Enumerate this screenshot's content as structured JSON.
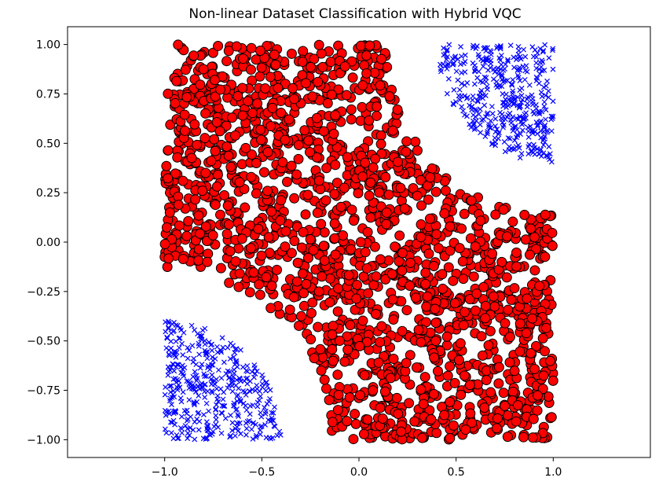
{
  "chart_data": {
    "type": "scatter",
    "title": "Non-linear Dataset Classification with Hybrid VQC",
    "xlabel": "",
    "ylabel": "",
    "xlim": [
      -1.5,
      1.5
    ],
    "ylim": [
      -1.09,
      1.09
    ],
    "grid": false,
    "x_ticks": [
      -1.0,
      -0.5,
      0.0,
      0.5,
      1.0
    ],
    "x_tick_labels": [
      "−1.0",
      "−0.5",
      "0.0",
      "0.5",
      "1.0"
    ],
    "y_ticks": [
      1.0,
      0.75,
      0.5,
      0.25,
      0.0,
      -0.25,
      -0.5,
      -0.75,
      -1.0
    ],
    "y_tick_labels": [
      "1.00",
      "0.75",
      "0.50",
      "0.25",
      "0.00",
      "−0.25",
      "−0.50",
      "−0.75",
      "−1.00"
    ],
    "series": [
      {
        "marker": "x",
        "color": "#0000ff",
        "region": "x in [-1,1], y in [-1,1]; points where (x-1)^2+(y-1)^2 < 0.36 or (x+1)^2+(y+1)^2 < 0.36 (opposite corners)",
        "approx_count": 1200
      },
      {
        "marker": "circle",
        "color": "#ff0000",
        "edgecolor": "#000000",
        "region": "x in [-1,1], y in [-1,1]; points outside the corner regions and satisfying y < 1.5*x + 0.75 roughly (upper-right/lower-left empty bands)",
        "approx_count": 1800
      }
    ]
  }
}
